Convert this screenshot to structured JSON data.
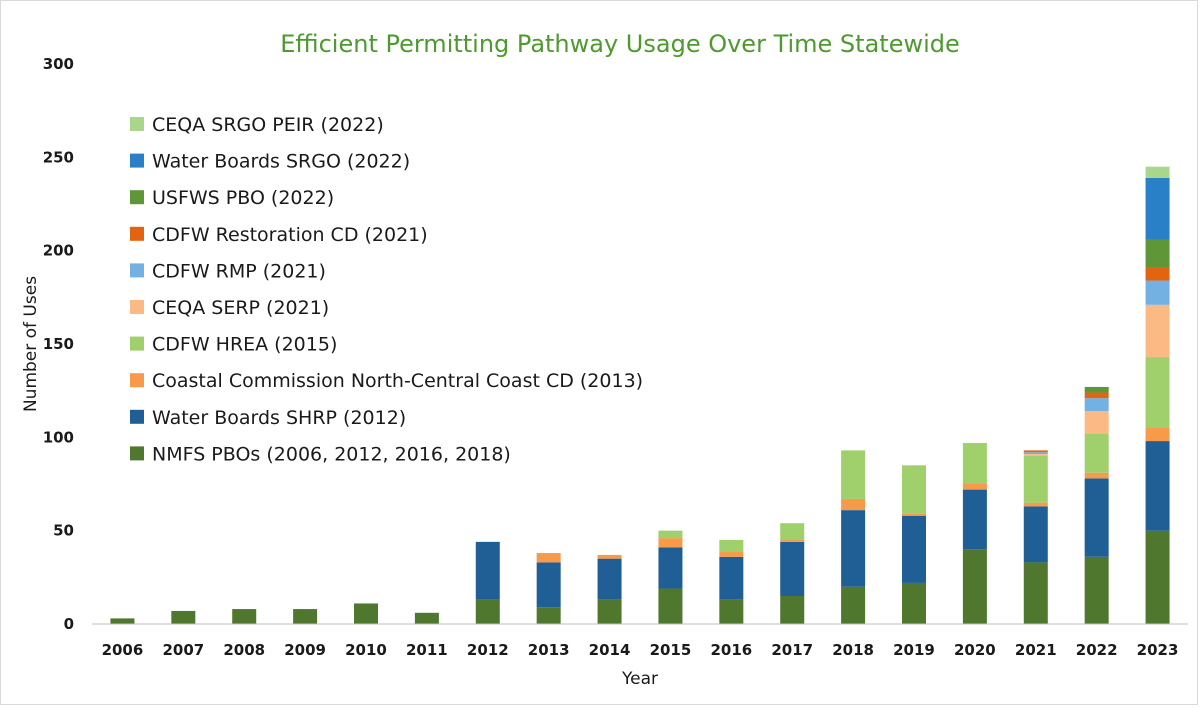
{
  "chart_data": {
    "type": "bar",
    "stacked": true,
    "title": "Efficient Permitting Pathway Usage Over Time Statewide",
    "xlabel": "Year",
    "ylabel": "Number of Uses",
    "ylim": [
      0,
      300
    ],
    "yticks": [
      0,
      50,
      100,
      150,
      200,
      250,
      300
    ],
    "grid": false,
    "legend_position": "top-left",
    "categories": [
      "2006",
      "2007",
      "2008",
      "2009",
      "2010",
      "2011",
      "2012",
      "2013",
      "2014",
      "2015",
      "2016",
      "2017",
      "2018",
      "2019",
      "2020",
      "2021",
      "2022",
      "2023"
    ],
    "series": [
      {
        "name": "NMFS PBOs (2006, 2012, 2016, 2018)",
        "color": "#4f772d",
        "values": [
          3,
          7,
          8,
          8,
          11,
          6,
          13,
          9,
          13,
          19,
          13,
          15,
          20,
          22,
          40,
          33,
          36,
          50
        ]
      },
      {
        "name": "Water Boards SHRP (2012)",
        "color": "#1f5f95",
        "values": [
          0,
          0,
          0,
          0,
          0,
          0,
          31,
          24,
          22,
          22,
          23,
          29,
          41,
          36,
          32,
          30,
          42,
          48
        ]
      },
      {
        "name": "Coastal Commission North-Central Coast CD (2013)",
        "color": "#f79a4a",
        "values": [
          0,
          0,
          0,
          0,
          0,
          0,
          0,
          5,
          2,
          5,
          3,
          1,
          6,
          1,
          3,
          2,
          3,
          7
        ]
      },
      {
        "name": "CDFW HREA (2015)",
        "color": "#9fd06b",
        "values": [
          0,
          0,
          0,
          0,
          0,
          0,
          0,
          0,
          0,
          4,
          6,
          9,
          26,
          26,
          22,
          25,
          21,
          38
        ]
      },
      {
        "name": "CEQA SERP (2021)",
        "color": "#fbba84",
        "values": [
          0,
          0,
          0,
          0,
          0,
          0,
          0,
          0,
          0,
          0,
          0,
          0,
          0,
          0,
          0,
          1,
          12,
          28
        ]
      },
      {
        "name": "CDFW RMP (2021)",
        "color": "#73b1e3",
        "values": [
          0,
          0,
          0,
          0,
          0,
          0,
          0,
          0,
          0,
          0,
          0,
          0,
          0,
          0,
          0,
          1,
          7,
          13
        ]
      },
      {
        "name": "CDFW Restoration CD (2021)",
        "color": "#e36410",
        "values": [
          0,
          0,
          0,
          0,
          0,
          0,
          0,
          0,
          0,
          0,
          0,
          0,
          0,
          0,
          0,
          1,
          3,
          7
        ]
      },
      {
        "name": "USFWS PBO (2022)",
        "color": "#5f9637",
        "values": [
          0,
          0,
          0,
          0,
          0,
          0,
          0,
          0,
          0,
          0,
          0,
          0,
          0,
          0,
          0,
          0,
          3,
          15
        ]
      },
      {
        "name": "Water Boards SRGO (2022)",
        "color": "#2a80c7",
        "values": [
          0,
          0,
          0,
          0,
          0,
          0,
          0,
          0,
          0,
          0,
          0,
          0,
          0,
          0,
          0,
          0,
          0,
          33
        ]
      },
      {
        "name": "CEQA SRGO PEIR (2022)",
        "color": "#a8d68a",
        "values": [
          0,
          0,
          0,
          0,
          0,
          0,
          0,
          0,
          0,
          0,
          0,
          0,
          0,
          0,
          0,
          0,
          0,
          6
        ]
      }
    ]
  }
}
